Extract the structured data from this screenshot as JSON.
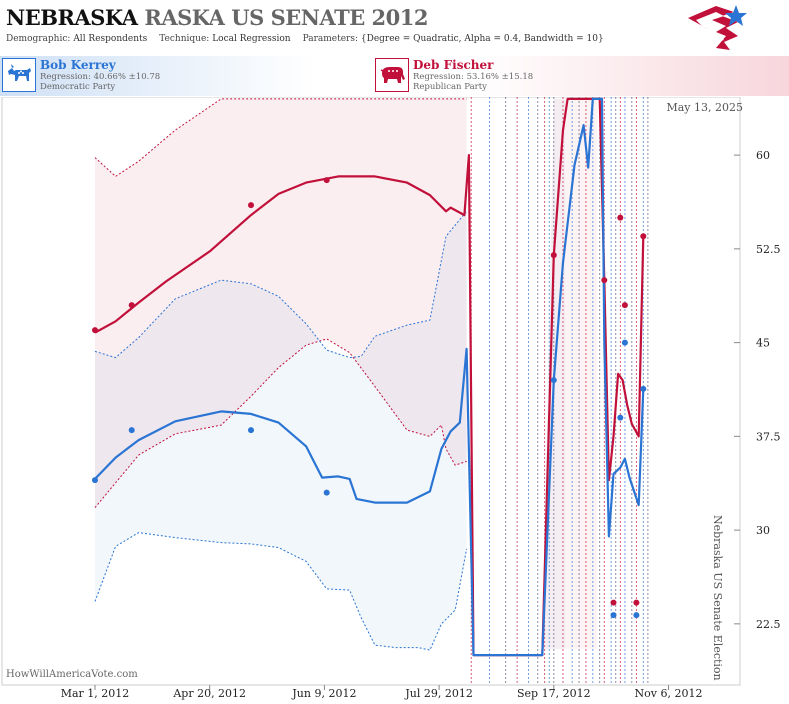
{
  "header": {
    "title_state": "NEBRASKA",
    "title_race": "RASKA US SENATE 2012",
    "demographic_label": "Demographic:",
    "demographic_value": "All Respondents",
    "technique_label": "Technique:",
    "technique_value": "Local Regression",
    "parameters_label": "Parameters:",
    "parameters_value": "{Degree = Quadratic, Alpha = 0.4, Bandwidth = 10}"
  },
  "candidates": [
    {
      "name": "Bob Kerrey",
      "regression": "Regression: 40.66% ±10.78",
      "party": "Democratic Party",
      "color": "#2a74d4",
      "icon": "donkey-icon"
    },
    {
      "name": "Deb Fischer",
      "regression": "Regression: 53.16% ±15.18",
      "party": "Republican Party",
      "color": "#c1103a",
      "icon": "elephant-icon"
    }
  ],
  "chart_annotations": {
    "date_stamp": "May 13, 2025",
    "watermark": "HowWillAmericaVote.com",
    "vertical_label": "Nebraska US Senate Election"
  },
  "chart_data": {
    "type": "line",
    "x_axis": {
      "type": "date",
      "ticks": [
        "Mar 1, 2012",
        "Apr 20, 2012",
        "Jun 9, 2012",
        "Jul 29, 2012",
        "Sep 17, 2012",
        "Nov 6, 2012"
      ]
    },
    "y_axis": {
      "position": "right",
      "ticks": [
        22.5,
        30,
        37.5,
        45,
        52.5,
        60
      ],
      "tick_labels": [
        "22.5",
        "30",
        "37.5",
        "45",
        "52.5",
        "60"
      ],
      "range": [
        20.5,
        64.5
      ]
    },
    "grid": false,
    "election_date": "2012-11-06",
    "series": [
      {
        "name": "Deb Fischer",
        "color": "#c1103a",
        "points": [
          [
            "2012-03-01",
            46
          ],
          [
            "2012-03-17",
            48
          ],
          [
            "2012-05-08",
            56
          ],
          [
            "2012-06-10",
            58
          ],
          [
            "2012-09-17",
            52
          ],
          [
            "2012-10-09",
            50
          ],
          [
            "2012-10-13",
            24.2
          ],
          [
            "2012-10-16",
            55
          ],
          [
            "2012-10-18",
            48
          ],
          [
            "2012-10-23",
            24.2
          ],
          [
            "2012-10-26",
            53.5
          ]
        ],
        "regression": [
          [
            "2012-03-01",
            45.8
          ],
          [
            "2012-03-10",
            46.7
          ],
          [
            "2012-03-20",
            48.2
          ],
          [
            "2012-04-01",
            49.9
          ],
          [
            "2012-04-20",
            52.3
          ],
          [
            "2012-05-08",
            55.2
          ],
          [
            "2012-05-20",
            56.9
          ],
          [
            "2012-06-01",
            57.8
          ],
          [
            "2012-06-15",
            58.3
          ],
          [
            "2012-07-01",
            58.3
          ],
          [
            "2012-07-15",
            57.8
          ],
          [
            "2012-07-25",
            56.8
          ],
          [
            "2012-08-01",
            55.5
          ],
          [
            "2012-08-03",
            55.8
          ],
          [
            "2012-08-09",
            55.2
          ],
          [
            "2012-08-11",
            60
          ],
          [
            "2012-08-13",
            20
          ],
          [
            "2012-09-12",
            20
          ],
          [
            "2012-09-17",
            52
          ],
          [
            "2012-09-21",
            62
          ],
          [
            "2012-09-23",
            64.5
          ],
          [
            "2012-09-29",
            64.5
          ],
          [
            "2012-10-05",
            64.5
          ],
          [
            "2012-10-07",
            64.5
          ],
          [
            "2012-10-09",
            50
          ],
          [
            "2012-10-11",
            34
          ],
          [
            "2012-10-13",
            37.5
          ],
          [
            "2012-10-15",
            42.5
          ],
          [
            "2012-10-17",
            42
          ],
          [
            "2012-10-19",
            40
          ],
          [
            "2012-10-21",
            38.5
          ],
          [
            "2012-10-24",
            37.5
          ],
          [
            "2012-10-26",
            53.5
          ]
        ],
        "ci_upper": [
          [
            "2012-03-01",
            59.8
          ],
          [
            "2012-03-10",
            58.3
          ],
          [
            "2012-03-20",
            59.5
          ],
          [
            "2012-04-05",
            62
          ],
          [
            "2012-04-25",
            64.5
          ],
          [
            "2012-08-05",
            64.5
          ],
          [
            "2012-08-10",
            64.5
          ]
        ],
        "ci_lower": [
          [
            "2012-03-01",
            31.8
          ],
          [
            "2012-03-20",
            36
          ],
          [
            "2012-04-05",
            37.7
          ],
          [
            "2012-04-25",
            38.4
          ],
          [
            "2012-05-08",
            40.7
          ],
          [
            "2012-05-20",
            43
          ],
          [
            "2012-06-01",
            44.8
          ],
          [
            "2012-06-10",
            45.3
          ],
          [
            "2012-06-20",
            44.2
          ],
          [
            "2012-07-01",
            41.5
          ],
          [
            "2012-07-15",
            38
          ],
          [
            "2012-07-25",
            37.5
          ],
          [
            "2012-07-30",
            38.4
          ],
          [
            "2012-08-01",
            36.5
          ],
          [
            "2012-08-05",
            35.2
          ],
          [
            "2012-08-10",
            35.5
          ]
        ]
      },
      {
        "name": "Bob Kerrey",
        "color": "#2a74d4",
        "points": [
          [
            "2012-03-01",
            34
          ],
          [
            "2012-03-17",
            38
          ],
          [
            "2012-05-08",
            38
          ],
          [
            "2012-06-10",
            33
          ],
          [
            "2012-09-17",
            42
          ],
          [
            "2012-10-13",
            23.2
          ],
          [
            "2012-10-16",
            39
          ],
          [
            "2012-10-18",
            45
          ],
          [
            "2012-10-23",
            23.2
          ],
          [
            "2012-10-26",
            41.3
          ]
        ],
        "regression": [
          [
            "2012-03-01",
            34.1
          ],
          [
            "2012-03-10",
            35.8
          ],
          [
            "2012-03-20",
            37.2
          ],
          [
            "2012-04-05",
            38.7
          ],
          [
            "2012-04-25",
            39.5
          ],
          [
            "2012-05-08",
            39.3
          ],
          [
            "2012-05-20",
            38.6
          ],
          [
            "2012-06-01",
            36.7
          ],
          [
            "2012-06-08",
            34.2
          ],
          [
            "2012-06-15",
            34.3
          ],
          [
            "2012-06-20",
            34.1
          ],
          [
            "2012-06-23",
            32.5
          ],
          [
            "2012-07-01",
            32.2
          ],
          [
            "2012-07-15",
            32.2
          ],
          [
            "2012-07-25",
            33.1
          ],
          [
            "2012-07-30",
            36.5
          ],
          [
            "2012-08-03",
            37.9
          ],
          [
            "2012-08-07",
            38.6
          ],
          [
            "2012-08-10",
            44.5
          ],
          [
            "2012-08-13",
            20
          ],
          [
            "2012-09-12",
            20
          ],
          [
            "2012-09-17",
            42
          ],
          [
            "2012-09-21",
            51.4
          ],
          [
            "2012-09-26",
            59.2
          ],
          [
            "2012-09-30",
            62.4
          ],
          [
            "2012-10-02",
            59
          ],
          [
            "2012-10-04",
            64.5
          ],
          [
            "2012-10-08",
            64.5
          ],
          [
            "2012-10-09",
            45
          ],
          [
            "2012-10-11",
            29.5
          ],
          [
            "2012-10-13",
            34.5
          ],
          [
            "2012-10-16",
            35
          ],
          [
            "2012-10-18",
            35.7
          ],
          [
            "2012-10-20",
            34.2
          ],
          [
            "2012-10-24",
            32
          ],
          [
            "2012-10-26",
            41.3
          ]
        ],
        "ci_upper": [
          [
            "2012-03-01",
            44.3
          ],
          [
            "2012-03-10",
            43.8
          ],
          [
            "2012-03-20",
            45.4
          ],
          [
            "2012-04-05",
            48.5
          ],
          [
            "2012-04-25",
            50
          ],
          [
            "2012-05-08",
            49.7
          ],
          [
            "2012-05-20",
            48.7
          ],
          [
            "2012-06-01",
            46.5
          ],
          [
            "2012-06-10",
            44.4
          ],
          [
            "2012-06-20",
            43.8
          ],
          [
            "2012-06-25",
            43.9
          ],
          [
            "2012-07-01",
            45.5
          ],
          [
            "2012-07-15",
            46.4
          ],
          [
            "2012-07-25",
            46.8
          ],
          [
            "2012-08-01",
            53.5
          ],
          [
            "2012-08-10",
            55.5
          ]
        ],
        "ci_lower": [
          [
            "2012-03-01",
            24.3
          ],
          [
            "2012-03-10",
            28.7
          ],
          [
            "2012-03-20",
            29.8
          ],
          [
            "2012-04-05",
            29.4
          ],
          [
            "2012-04-25",
            29
          ],
          [
            "2012-05-08",
            28.9
          ],
          [
            "2012-05-20",
            28.6
          ],
          [
            "2012-06-01",
            27.5
          ],
          [
            "2012-06-10",
            25.3
          ],
          [
            "2012-06-20",
            25.2
          ],
          [
            "2012-06-25",
            23
          ],
          [
            "2012-07-01",
            20.8
          ],
          [
            "2012-07-10",
            20.6
          ],
          [
            "2012-07-20",
            20.6
          ],
          [
            "2012-07-25",
            20.4
          ],
          [
            "2012-07-30",
            22.5
          ],
          [
            "2012-08-05",
            23.6
          ],
          [
            "2012-08-10",
            28.5
          ]
        ]
      }
    ]
  }
}
